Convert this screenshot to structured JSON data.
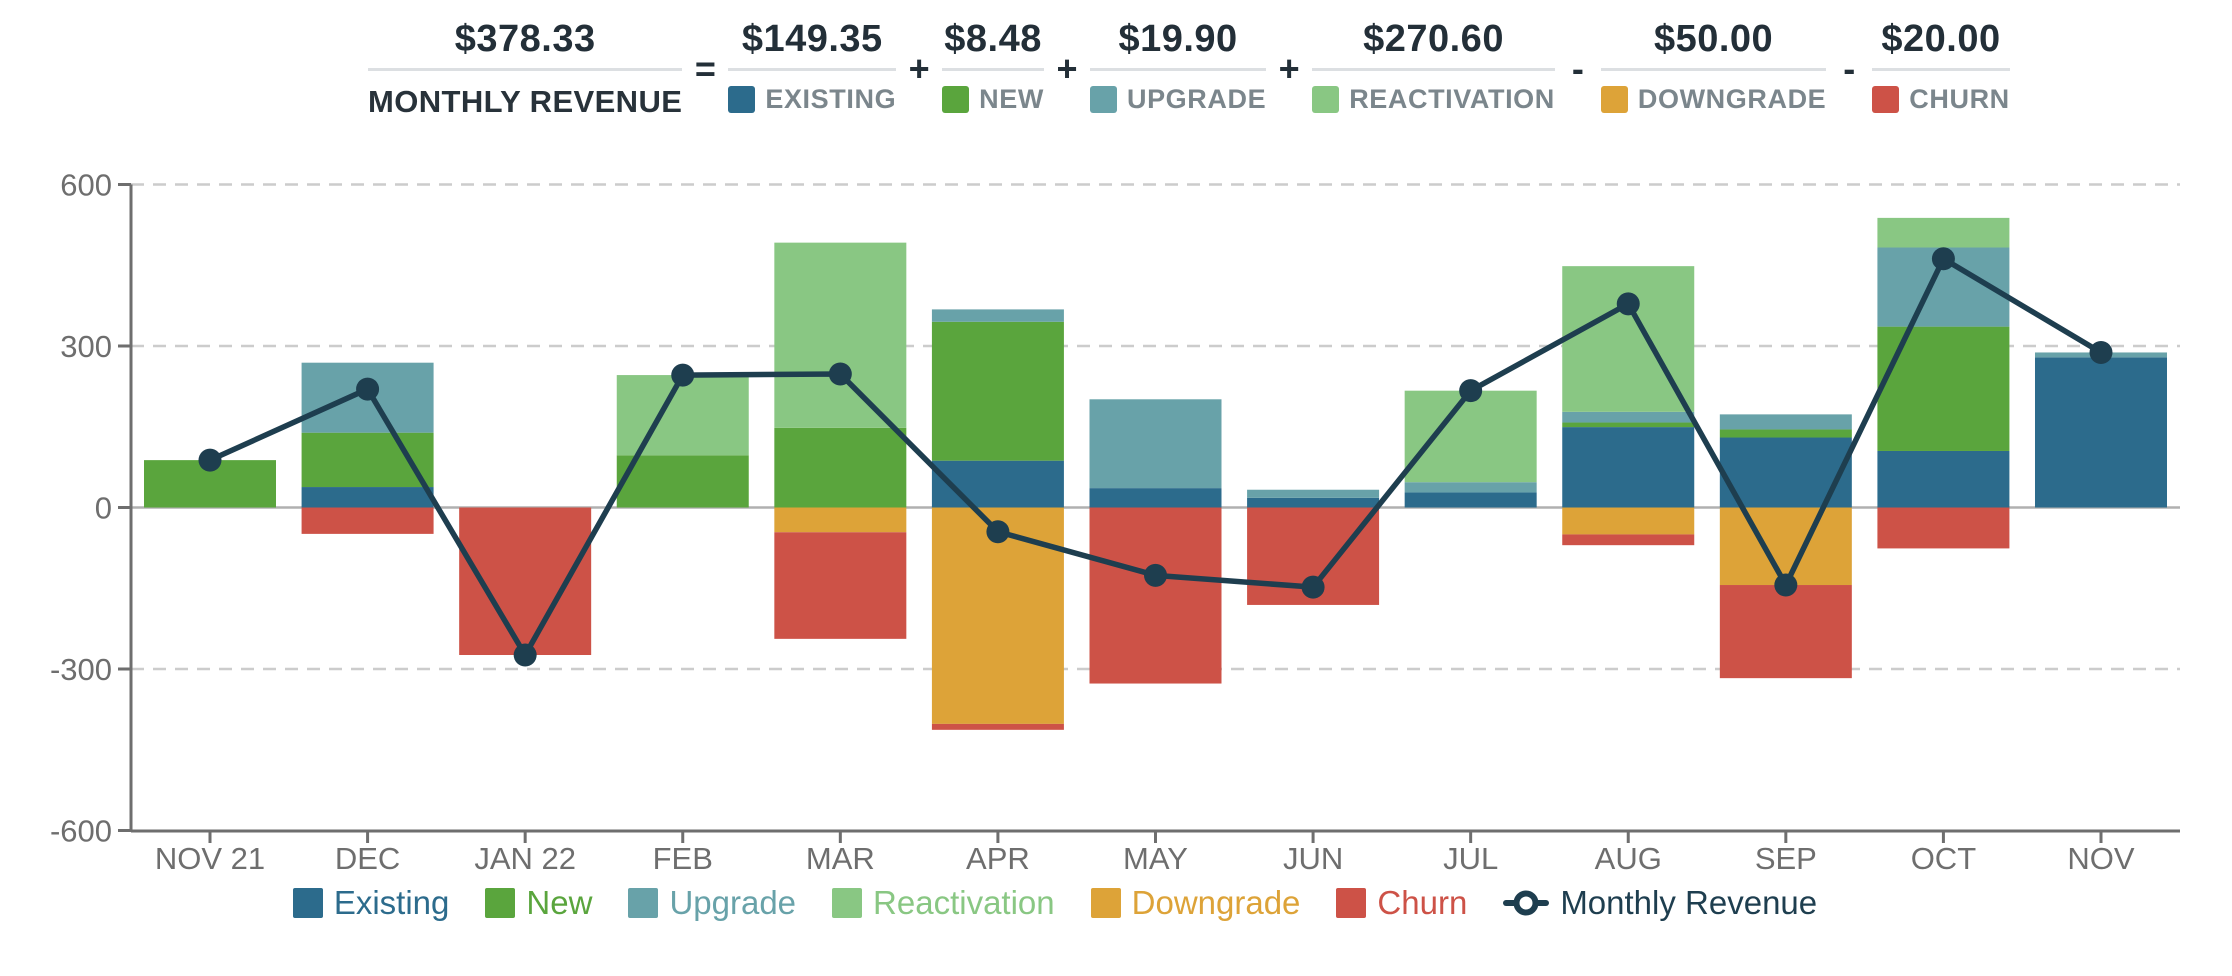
{
  "header": {
    "total": {
      "value": "$378.33",
      "label": "MONTHLY REVENUE"
    },
    "terms": [
      {
        "op": "=",
        "value": "$149.35",
        "label": "EXISTING",
        "color": "#2c6b8c"
      },
      {
        "op": "+",
        "value": "$8.48",
        "label": "NEW",
        "color": "#5aa53d"
      },
      {
        "op": "+",
        "value": "$19.90",
        "label": "UPGRADE",
        "color": "#68a2a9"
      },
      {
        "op": "+",
        "value": "$270.60",
        "label": "REACTIVATION",
        "color": "#89c783"
      },
      {
        "op": "-",
        "value": "$50.00",
        "label": "DOWNGRADE",
        "color": "#dda338"
      },
      {
        "op": "-",
        "value": "$20.00",
        "label": "CHURN",
        "color": "#cd5247"
      }
    ]
  },
  "legend": {
    "items": [
      {
        "label": "Existing",
        "color": "#2c6b8c",
        "marker": "swatch"
      },
      {
        "label": "New",
        "color": "#5aa53d",
        "marker": "swatch"
      },
      {
        "label": "Upgrade",
        "color": "#68a2a9",
        "marker": "swatch"
      },
      {
        "label": "Reactivation",
        "color": "#89c783",
        "marker": "swatch"
      },
      {
        "label": "Downgrade",
        "color": "#dda338",
        "marker": "swatch"
      },
      {
        "label": "Churn",
        "color": "#cd5247",
        "marker": "swatch"
      },
      {
        "label": "Monthly Revenue",
        "color": "#1e3e4f",
        "marker": "line-dot"
      }
    ]
  },
  "chart_data": {
    "type": "stacked-bar-with-line",
    "title": "MONTHLY REVENUE",
    "categories": [
      "NOV 21",
      "DEC",
      "JAN 22",
      "FEB",
      "MAR",
      "APR",
      "MAY",
      "JUN",
      "JUL",
      "AUG",
      "SEP",
      "OCT",
      "NOV"
    ],
    "series": [
      {
        "name": "Existing",
        "color": "#2c6b8c",
        "values": [
          0,
          38,
          0,
          0,
          0,
          87,
          36,
          18,
          28,
          149.35,
          130,
          105,
          279
        ]
      },
      {
        "name": "New",
        "color": "#5aa53d",
        "values": [
          88,
          101,
          0,
          97,
          148,
          258,
          0,
          0,
          0,
          8.48,
          15,
          231,
          0
        ]
      },
      {
        "name": "Upgrade",
        "color": "#68a2a9",
        "values": [
          0,
          130,
          0,
          0,
          0,
          23,
          165,
          15,
          19,
          19.9,
          28,
          147,
          9
        ]
      },
      {
        "name": "Reactivation",
        "color": "#89c783",
        "values": [
          0,
          0,
          0,
          149,
          344,
          0,
          0,
          0,
          170,
          270.6,
          0,
          55,
          0
        ]
      },
      {
        "name": "Downgrade",
        "color": "#dda338",
        "values": [
          0,
          0,
          0,
          0,
          -46,
          -402,
          0,
          0,
          0,
          -50,
          -144,
          0,
          0
        ]
      },
      {
        "name": "Churn",
        "color": "#cd5247",
        "values": [
          0,
          -49,
          -274,
          0,
          -198,
          -11,
          -327,
          -181,
          0,
          -20,
          -173,
          -76,
          0
        ]
      }
    ],
    "line": {
      "name": "Monthly Revenue",
      "color": "#1e3e4f",
      "values": [
        88,
        220,
        -274,
        246,
        248,
        -45,
        -126,
        -148,
        217,
        378.33,
        -144,
        462,
        288
      ]
    },
    "ylim": [
      -600,
      600
    ],
    "yticks": [
      600,
      300,
      0,
      -300,
      -600
    ],
    "grid": "dashed",
    "legend_position": "bottom",
    "colors": {
      "grid": "#cccccc",
      "zero_line": "#b0b0b0",
      "axis": "#6e6e6e",
      "tick_text": "#6e6e6e"
    }
  }
}
